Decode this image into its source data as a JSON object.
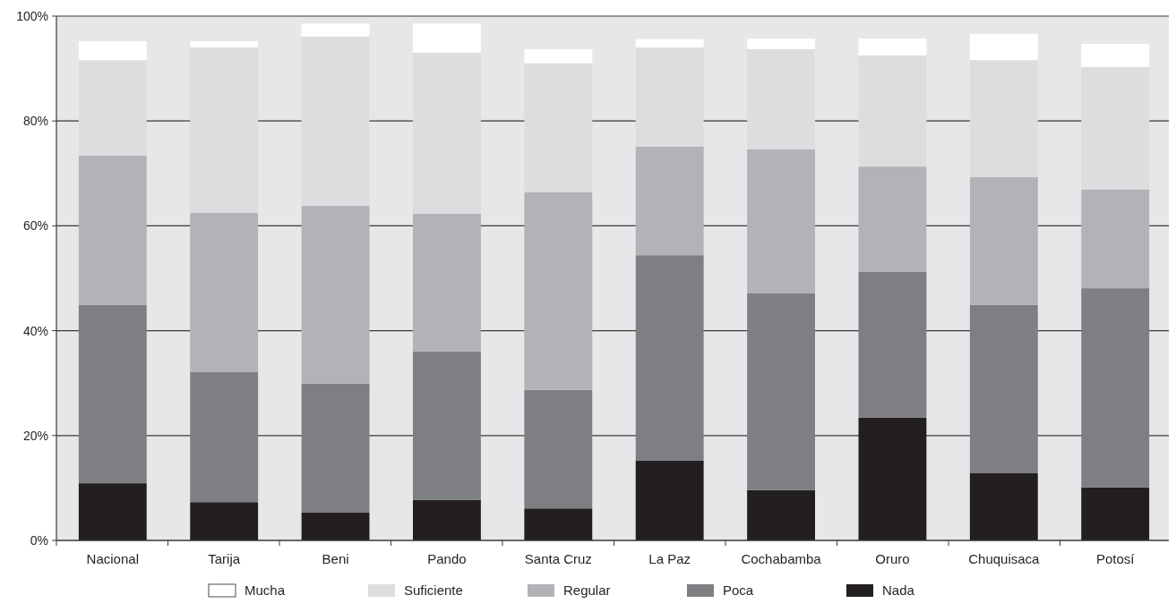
{
  "chart_data": {
    "type": "bar",
    "stacked": true,
    "categories": [
      "Nacional",
      "Tarija",
      "Beni",
      "Pando",
      "Santa Cruz",
      "La Paz",
      "Cochabamba",
      "Oruro",
      "Chuquisaca",
      "Potosí"
    ],
    "series": [
      {
        "name": "Nada",
        "color": "#231f20",
        "values": [
          10.9,
          7.3,
          5.3,
          7.7,
          6.1,
          15.2,
          9.6,
          23.4,
          12.8,
          10.1
        ]
      },
      {
        "name": "Poca",
        "color": "#7d7f82",
        "values": [
          34.0,
          24.8,
          24.6,
          28.3,
          22.6,
          39.2,
          37.5,
          27.8,
          32.1,
          38.0
        ]
      },
      {
        "name": "Regular",
        "color": "#b1b3b6",
        "values": [
          28.5,
          30.4,
          33.9,
          26.3,
          37.7,
          20.7,
          27.5,
          20.1,
          24.4,
          18.8
        ]
      },
      {
        "name": "Suficiente",
        "color": "#dcdddf",
        "values": [
          18.2,
          31.5,
          32.3,
          30.7,
          24.6,
          18.9,
          19.1,
          21.2,
          22.3,
          23.4
        ]
      },
      {
        "name": "Mucha",
        "color": "#ffffff",
        "values": [
          3.6,
          1.2,
          2.5,
          5.6,
          2.7,
          1.6,
          2.0,
          3.2,
          5.0,
          4.4
        ]
      }
    ],
    "ylim": [
      0,
      100
    ],
    "yticks": [
      {
        "value": 0,
        "label": "0%"
      },
      {
        "value": 20,
        "label": "20%"
      },
      {
        "value": 40,
        "label": "40%"
      },
      {
        "value": 60,
        "label": "60%"
      },
      {
        "value": 80,
        "label": "80%"
      },
      {
        "value": 100,
        "label": "100%"
      }
    ],
    "grid": "y",
    "legend": "bottom"
  }
}
